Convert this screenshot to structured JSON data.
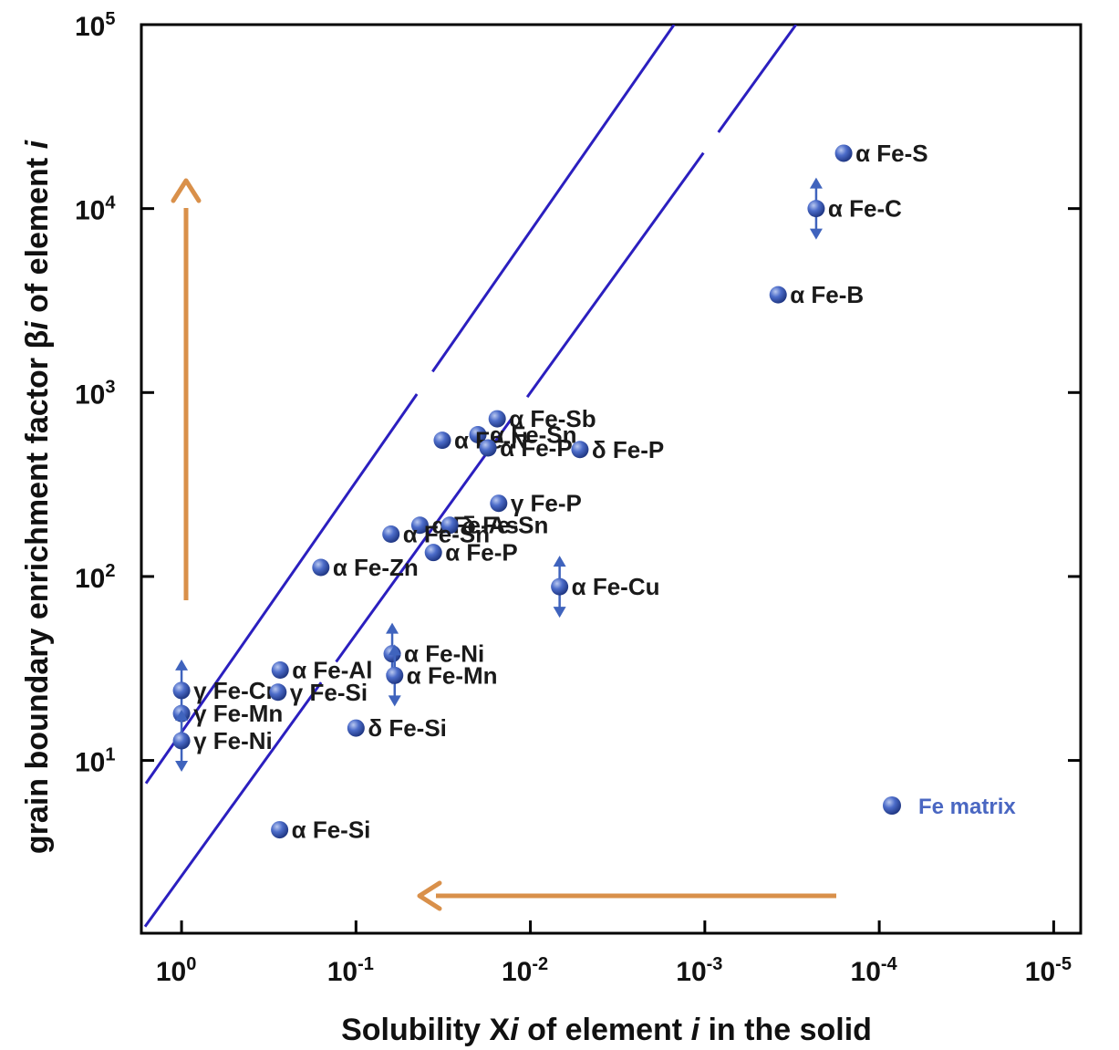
{
  "chart_data": {
    "type": "scatter",
    "x_scale": "log",
    "y_scale": "log",
    "x_reversed": true,
    "xlim": [
      1.7,
      7e-06
    ],
    "ylim": [
      1.15,
      100000
    ],
    "x_ticks": [
      {
        "value": 1,
        "base": "10",
        "exp": "0"
      },
      {
        "value": 0.1,
        "base": "10",
        "exp": "-1"
      },
      {
        "value": 0.01,
        "base": "10",
        "exp": "-2"
      },
      {
        "value": 0.001,
        "base": "10",
        "exp": "-3"
      },
      {
        "value": 0.0001,
        "base": "10",
        "exp": "-4"
      },
      {
        "value": 1e-05,
        "base": "10",
        "exp": "-5"
      }
    ],
    "y_ticks": [
      {
        "value": 10,
        "base": "10",
        "exp": "1"
      },
      {
        "value": 100,
        "base": "10",
        "exp": "2"
      },
      {
        "value": 1000,
        "base": "10",
        "exp": "3"
      },
      {
        "value": 10000,
        "base": "10",
        "exp": "4"
      },
      {
        "value": 100000,
        "base": "10",
        "exp": "5"
      }
    ],
    "xlabel": {
      "p1": "Solubility  X",
      "p2": "i",
      "p3": "  of element  ",
      "p4": "i",
      "p5": "  in the solid"
    },
    "ylabel": {
      "p1": "grain boundary enrichment factor  β",
      "p2": "i",
      "p3": "  of element  ",
      "p4": "i"
    },
    "points": [
      {
        "label": "α Fe-S",
        "x": 0.00016,
        "y": 20000
      },
      {
        "label": "α Fe-C",
        "x": 0.00023,
        "y": 10000,
        "range": true
      },
      {
        "label": "α Fe-B",
        "x": 0.00038,
        "y": 3400
      },
      {
        "label": "α Fe-Sb",
        "x": 0.0155,
        "y": 720
      },
      {
        "label": "α Fe-Sn",
        "x": 0.02,
        "y": 590
      },
      {
        "label": "α Fe-N",
        "x": 0.032,
        "y": 550
      },
      {
        "label": "α Fe-P",
        "x": 0.0175,
        "y": 500
      },
      {
        "label": "δ Fe-P",
        "x": 0.0052,
        "y": 490
      },
      {
        "label": "γ Fe-P",
        "x": 0.0152,
        "y": 250
      },
      {
        "label": "α Fe-As",
        "x": 0.043,
        "y": 190
      },
      {
        "label": "δ Fe-Sn",
        "x": 0.029,
        "y": 190
      },
      {
        "label": "α Fe-Sn",
        "x": 0.063,
        "y": 170
      },
      {
        "label": "α Fe-P",
        "x": 0.036,
        "y": 135
      },
      {
        "label": "α Fe-Zn",
        "x": 0.159,
        "y": 112
      },
      {
        "label": "α Fe-Cu",
        "x": 0.0068,
        "y": 88,
        "range": true
      },
      {
        "label": "α Fe-Ni",
        "x": 0.062,
        "y": 38,
        "range": true
      },
      {
        "label": "α Fe-Mn",
        "x": 0.06,
        "y": 29,
        "range": true
      },
      {
        "label": "α Fe-Al",
        "x": 0.272,
        "y": 31
      },
      {
        "label": "γ Fe-Cr",
        "x": 1.0,
        "y": 24,
        "range": true
      },
      {
        "label": "γ Fe-Si",
        "x": 0.28,
        "y": 23.5
      },
      {
        "label": "γ Fe-Mn",
        "x": 1.0,
        "y": 18
      },
      {
        "label": "γ Fe-Ni",
        "x": 1.0,
        "y": 12.8,
        "range": true
      },
      {
        "label": "δ Fe-Si",
        "x": 0.1,
        "y": 15
      },
      {
        "label": "α Fe-Si",
        "x": 0.274,
        "y": 4.2
      }
    ],
    "guide_lines": [
      {
        "from": [
          1.6,
          7.5
        ],
        "to": [
          0.0015,
          100000
        ]
      },
      {
        "from": [
          1.62,
          1.25
        ],
        "to": [
          0.0003,
          100000
        ]
      }
    ],
    "legend": {
      "label": "Fe matrix",
      "position": "bottom-right"
    },
    "colors": {
      "marker": "#3f5fbf",
      "line": "#2b1fbf",
      "arrow": "#d9904a",
      "legend_text": "#4a67c2",
      "range_arrow": "#3f63bd"
    }
  }
}
